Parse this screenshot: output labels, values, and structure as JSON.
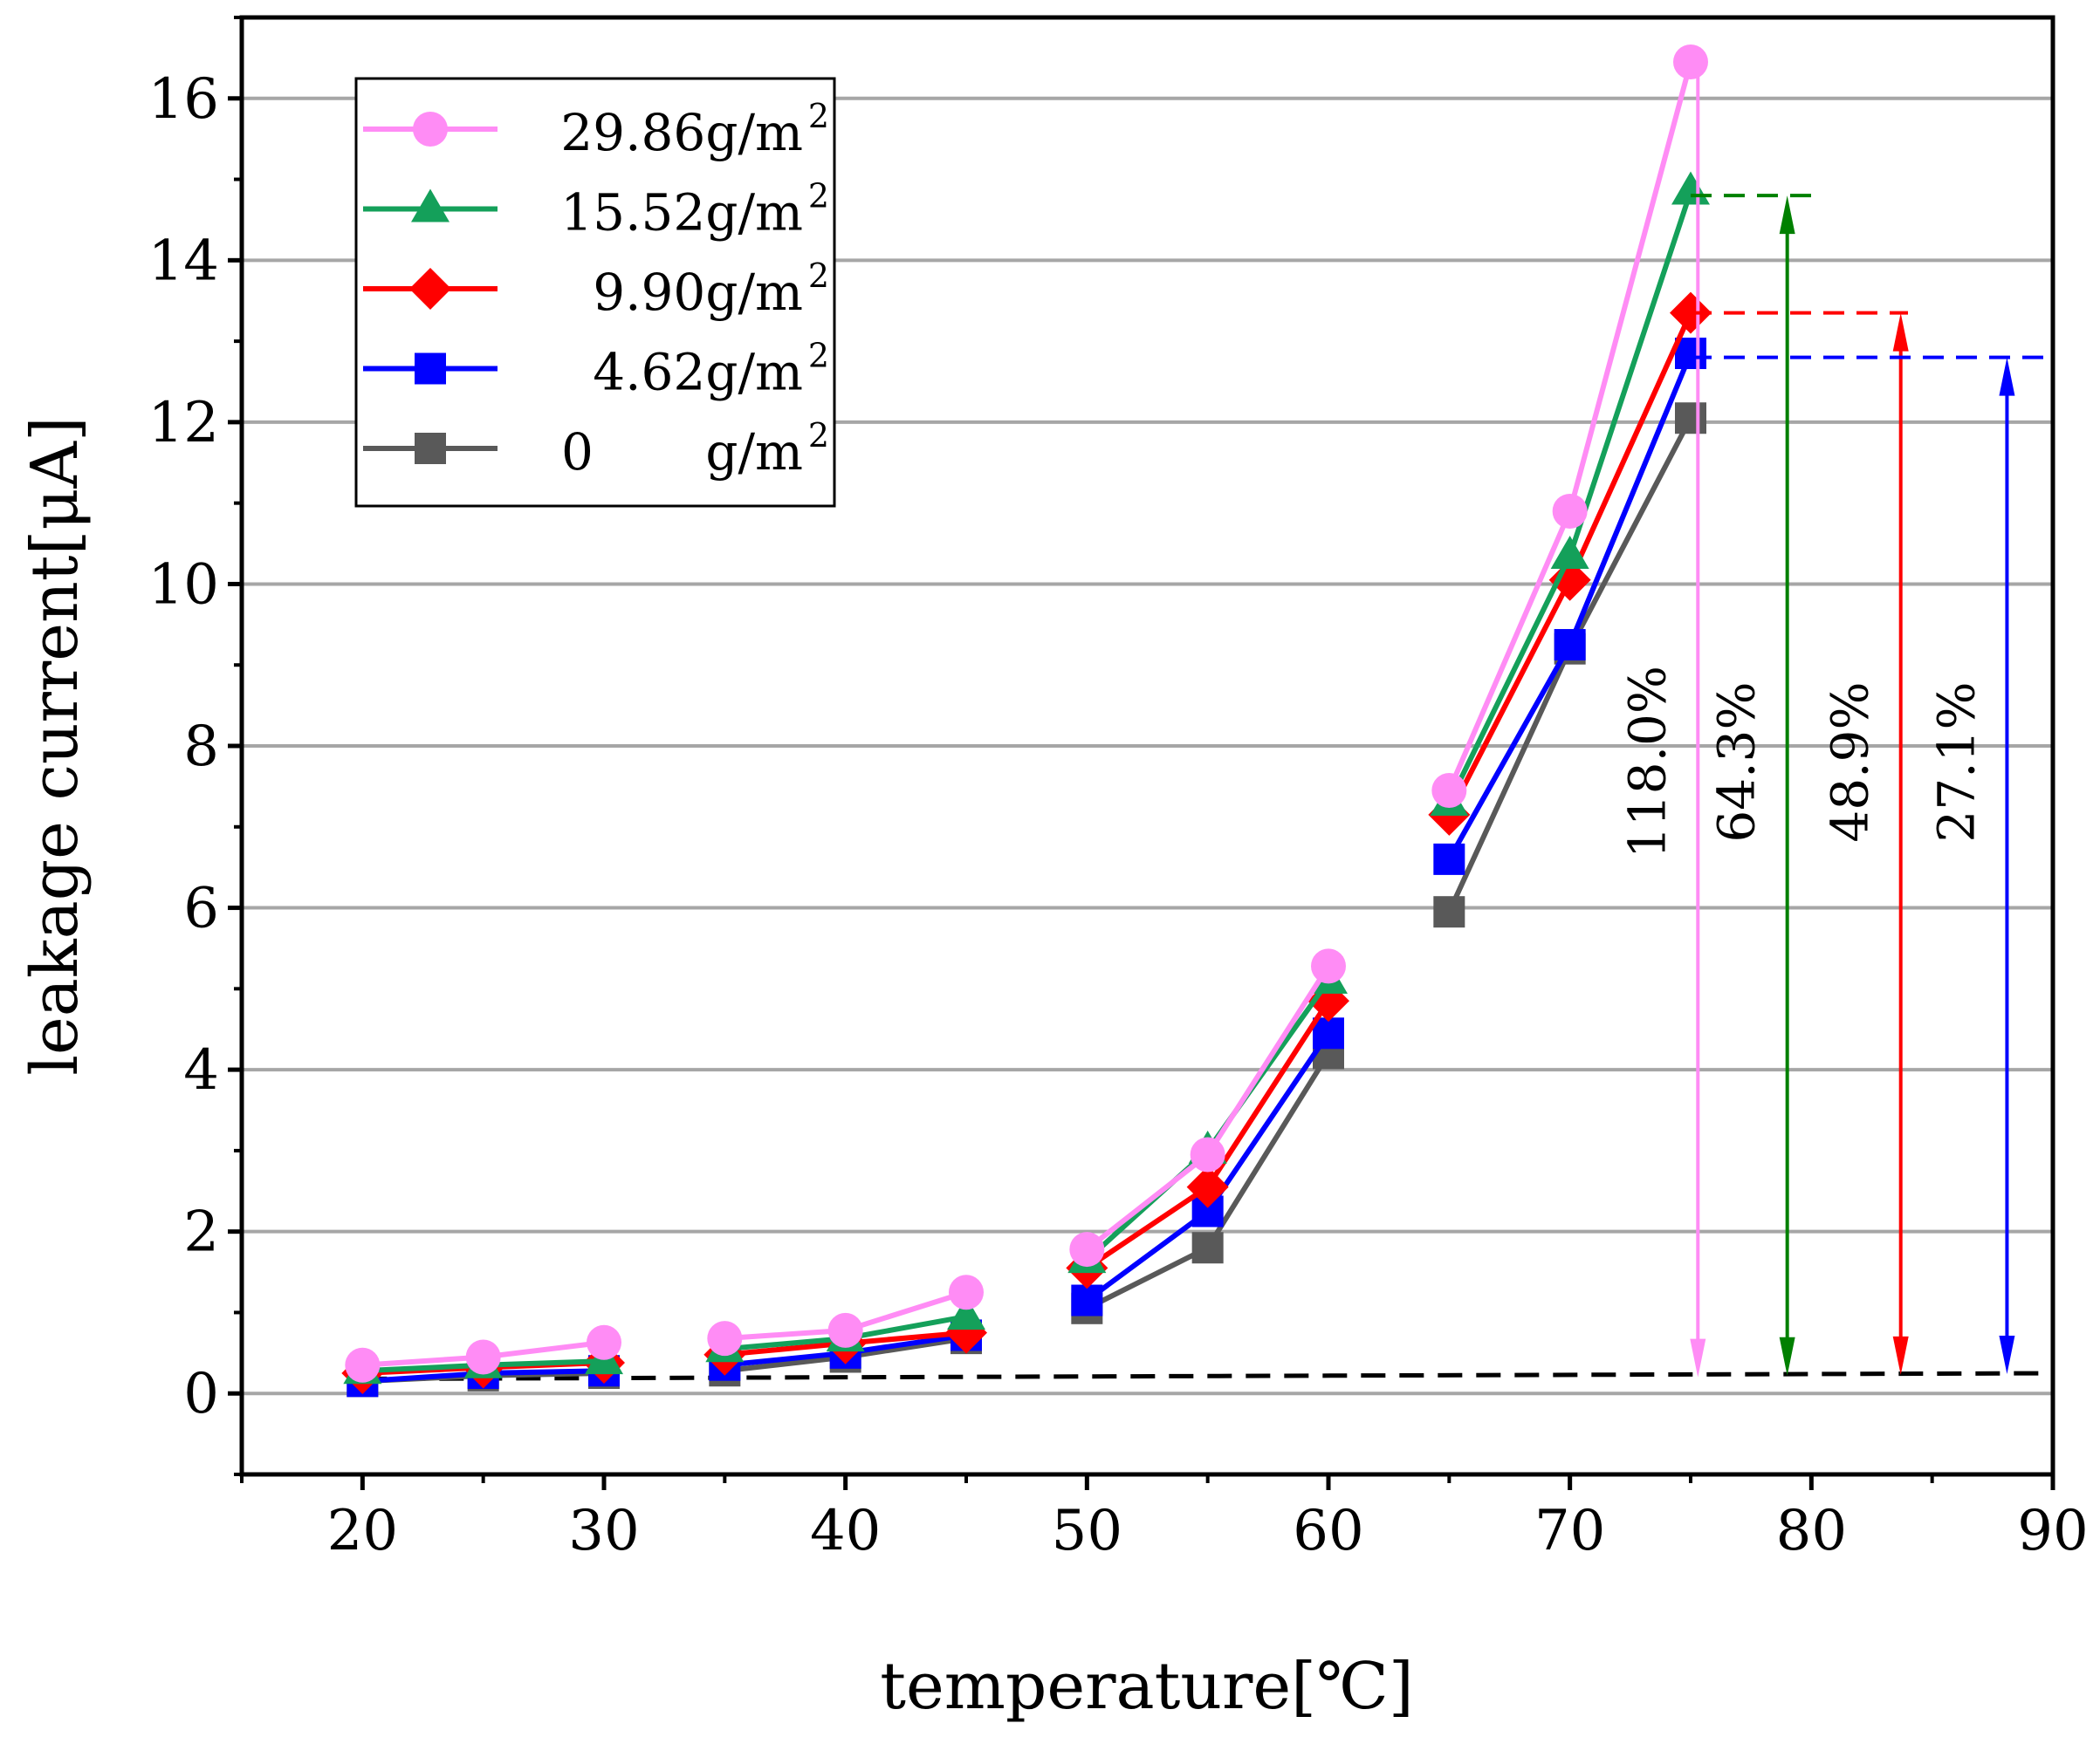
{
  "chart_data": {
    "type": "line",
    "title": "",
    "xlabel": "temperature[℃]",
    "ylabel": "leakage current[μA]",
    "xlim": [
      15,
      90
    ],
    "ylim": [
      -1,
      17
    ],
    "x_ticks": [
      20,
      30,
      40,
      50,
      60,
      70,
      80,
      90
    ],
    "y_ticks": [
      0,
      2,
      4,
      6,
      8,
      10,
      12,
      14,
      16
    ],
    "grid": "horizontal",
    "legend_position": "top-left",
    "series": [
      {
        "name": "29.86g/m²",
        "label_value": "29.86g/m",
        "label_unit_sup": "2",
        "color": "#ff8cf5",
        "marker": "circle",
        "segments": [
          {
            "x": [
              20,
              25,
              30
            ],
            "y": [
              0.35,
              0.45,
              0.63
            ]
          },
          {
            "x": [
              35,
              40,
              45
            ],
            "y": [
              0.68,
              0.78,
              1.25
            ]
          },
          {
            "x": [
              50,
              55,
              60
            ],
            "y": [
              1.78,
              2.95,
              5.28
            ]
          },
          {
            "x": [
              65,
              70,
              75
            ],
            "y": [
              7.45,
              10.9,
              16.45
            ]
          }
        ]
      },
      {
        "name": "15.52g/m²",
        "label_value": "15.52g/m",
        "label_unit_sup": "2",
        "color": "#14a05a",
        "marker": "triangle",
        "segments": [
          {
            "x": [
              20,
              25,
              30
            ],
            "y": [
              0.28,
              0.35,
              0.4
            ]
          },
          {
            "x": [
              35,
              40,
              45
            ],
            "y": [
              0.55,
              0.68,
              0.95
            ]
          },
          {
            "x": [
              50,
              55,
              60
            ],
            "y": [
              1.65,
              3.0,
              5.1
            ]
          },
          {
            "x": [
              65,
              70,
              75
            ],
            "y": [
              7.3,
              10.35,
              14.85
            ]
          }
        ]
      },
      {
        "name": "9.90g/m²",
        "label_value": "9.90g/m",
        "label_unit_sup": "2",
        "color": "#ff0000",
        "marker": "diamond",
        "segments": [
          {
            "x": [
              20,
              25,
              30
            ],
            "y": [
              0.25,
              0.32,
              0.38
            ]
          },
          {
            "x": [
              35,
              40,
              45
            ],
            "y": [
              0.48,
              0.62,
              0.75
            ]
          },
          {
            "x": [
              50,
              55,
              60
            ],
            "y": [
              1.55,
              2.55,
              4.85
            ]
          },
          {
            "x": [
              65,
              70,
              75
            ],
            "y": [
              7.15,
              10.05,
              13.35
            ]
          }
        ]
      },
      {
        "name": "4.62g/m²",
        "label_value": "4.62g/m",
        "label_unit_sup": "2",
        "color": "#0000ff",
        "marker": "square",
        "segments": [
          {
            "x": [
              20,
              25,
              30
            ],
            "y": [
              0.15,
              0.25,
              0.28
            ]
          },
          {
            "x": [
              35,
              40,
              45
            ],
            "y": [
              0.35,
              0.5,
              0.72
            ]
          },
          {
            "x": [
              50,
              55,
              60
            ],
            "y": [
              1.15,
              2.25,
              4.45
            ]
          },
          {
            "x": [
              65,
              70,
              75
            ],
            "y": [
              6.6,
              9.25,
              12.85
            ]
          }
        ]
      },
      {
        "name": "0 g/m²",
        "label_value": "0",
        "label_unit": "g/m",
        "label_unit_sup": "2",
        "color": "#595959",
        "marker": "square",
        "segments": [
          {
            "x": [
              20,
              25,
              30
            ],
            "y": [
              0.15,
              0.22,
              0.25
            ]
          },
          {
            "x": [
              35,
              40,
              45
            ],
            "y": [
              0.28,
              0.45,
              0.68
            ]
          },
          {
            "x": [
              50,
              55,
              60
            ],
            "y": [
              1.05,
              1.8,
              4.2
            ]
          },
          {
            "x": [
              65,
              70,
              75
            ],
            "y": [
              5.95,
              9.2,
              12.05
            ]
          }
        ]
      }
    ],
    "baseline": {
      "x": [
        20,
        90
      ],
      "y": [
        0.18,
        0.25
      ],
      "color": "#000000",
      "style": "dashed"
    },
    "annotations": [
      {
        "label": "118.0%",
        "x": 75.3,
        "y_bottom": 0.2,
        "y_top": 16.45,
        "color": "#ff8cf5",
        "head": "down"
      },
      {
        "label": "64.3%",
        "x": 79.0,
        "y_bottom": 0.22,
        "y_top": 14.8,
        "color": "#008000",
        "head": "both",
        "ref_x_start": 75,
        "ref_x_end": 80
      },
      {
        "label": "48.9%",
        "x": 83.7,
        "y_bottom": 0.23,
        "y_top": 13.35,
        "color": "#ff0000",
        "head": "both",
        "ref_x_start": 75,
        "ref_x_end": 84
      },
      {
        "label": "27.1%",
        "x": 88.1,
        "y_bottom": 0.24,
        "y_top": 12.8,
        "color": "#0000ff",
        "head": "both",
        "ref_x_start": 75,
        "ref_x_end": 90
      }
    ]
  }
}
